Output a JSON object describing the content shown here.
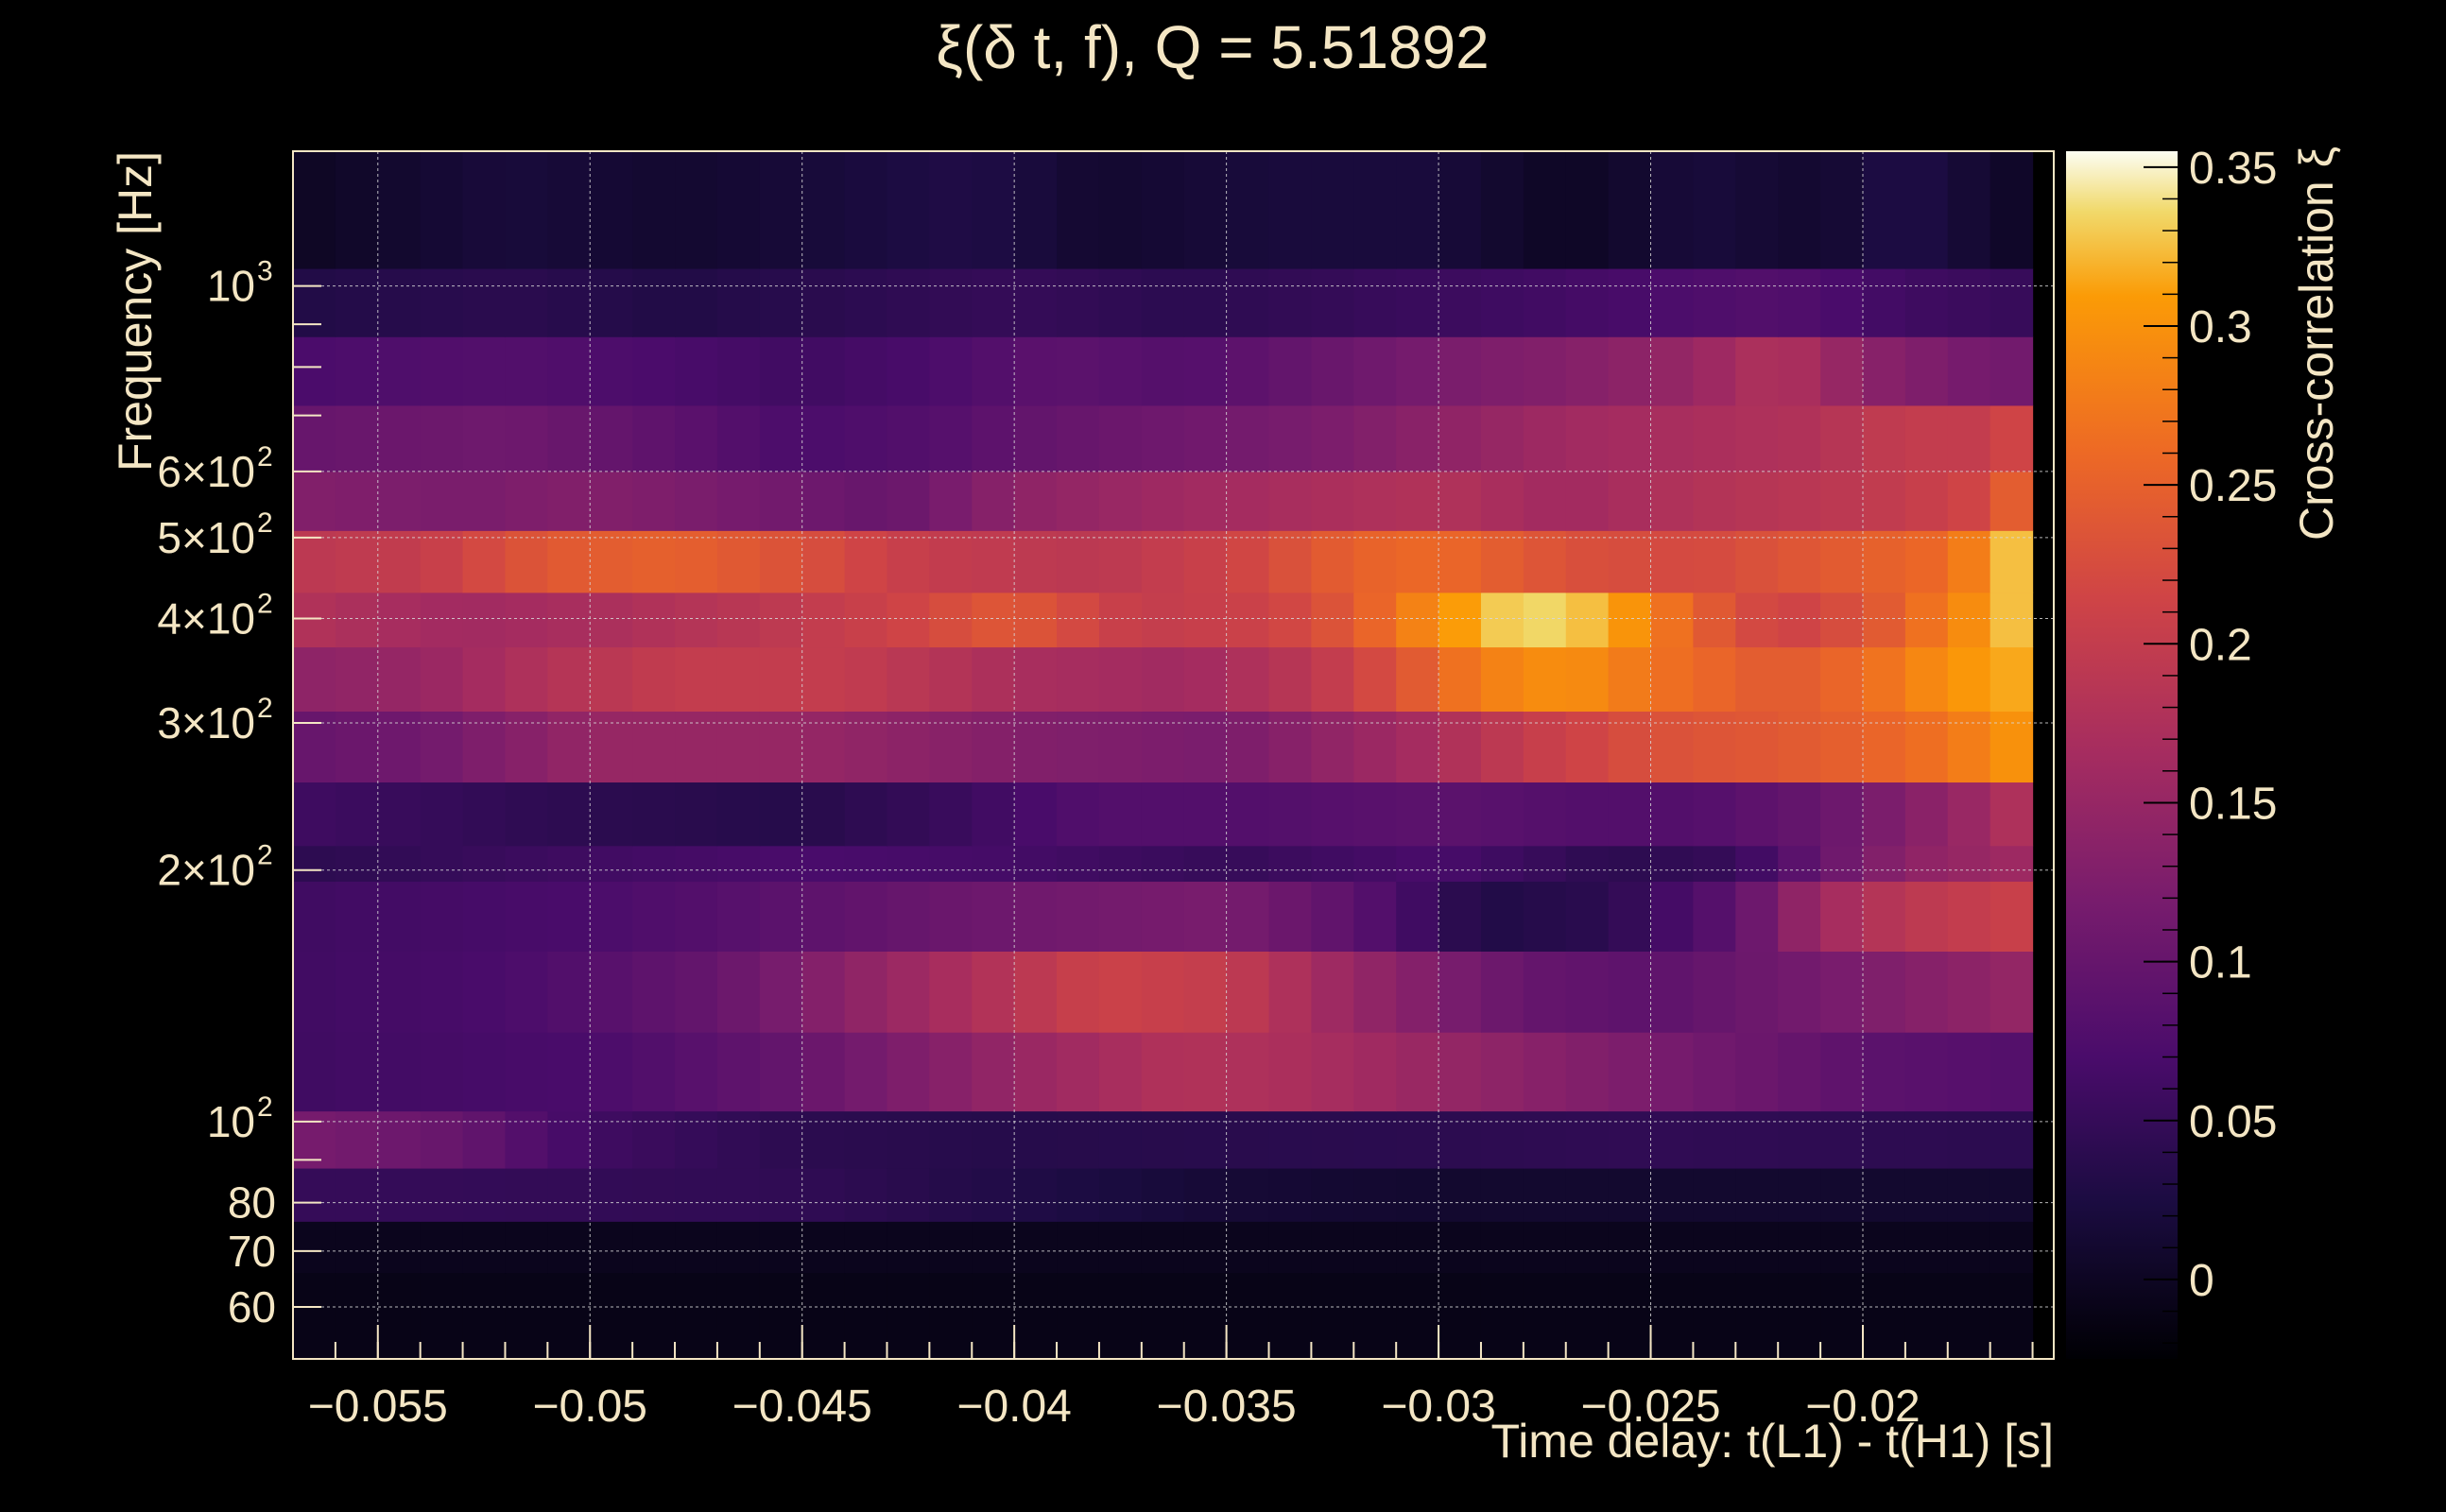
{
  "chart_data": {
    "type": "heatmap",
    "title": "ξ(δ t, f), Q = 5.51892",
    "xlabel": "Time delay: t(L1) - t(H1) [s]",
    "ylabel": "Frequency [Hz]",
    "zlabel": "Cross-correlation ξ",
    "x_scale": "linear",
    "y_scale": "log",
    "xlim": [
      -0.057,
      -0.0155
    ],
    "ylim": [
      52,
      1450
    ],
    "zlim": [
      -0.025,
      0.355
    ],
    "x_ticks": [
      {
        "value": -0.055,
        "label": "−0.055"
      },
      {
        "value": -0.05,
        "label": "−0.05"
      },
      {
        "value": -0.045,
        "label": "−0.045"
      },
      {
        "value": -0.04,
        "label": "−0.04"
      },
      {
        "value": -0.035,
        "label": "−0.035"
      },
      {
        "value": -0.03,
        "label": "−0.03"
      },
      {
        "value": -0.025,
        "label": "−0.025"
      },
      {
        "value": -0.02,
        "label": "−0.02"
      }
    ],
    "y_ticks": [
      {
        "value": 60,
        "label": "60"
      },
      {
        "value": 70,
        "label": "70"
      },
      {
        "value": 80,
        "label": "80"
      },
      {
        "value": 100,
        "label": "10",
        "sup": "2"
      },
      {
        "value": 200,
        "label": "2×10",
        "sup": "2"
      },
      {
        "value": 300,
        "label": "3×10",
        "sup": "2"
      },
      {
        "value": 400,
        "label": "4×10",
        "sup": "2"
      },
      {
        "value": 500,
        "label": "5×10",
        "sup": "2"
      },
      {
        "value": 600,
        "label": "6×10",
        "sup": "2"
      },
      {
        "value": 1000,
        "label": "10",
        "sup": "3"
      }
    ],
    "z_ticks": [
      {
        "value": 0,
        "label": "0"
      },
      {
        "value": 0.05,
        "label": "0.05"
      },
      {
        "value": 0.1,
        "label": "0.1"
      },
      {
        "value": 0.15,
        "label": "0.15"
      },
      {
        "value": 0.2,
        "label": "0.2"
      },
      {
        "value": 0.25,
        "label": "0.25"
      },
      {
        "value": 0.3,
        "label": "0.3"
      },
      {
        "value": 0.35,
        "label": "0.35"
      }
    ],
    "grid": true,
    "colormap": "inferno",
    "x_start": -0.057,
    "x_bin_width": 0.001,
    "x_bins": 41,
    "freq_bands": [
      {
        "f_low": 52,
        "f_high": 66,
        "profile": [
          [
            -0.057,
            -0.01
          ],
          [
            -0.016,
            -0.01
          ]
        ]
      },
      {
        "f_low": 66,
        "f_high": 76,
        "profile": [
          [
            -0.057,
            -0.005
          ],
          [
            -0.016,
            -0.005
          ]
        ]
      },
      {
        "f_low": 76,
        "f_high": 88,
        "profile": [
          [
            -0.057,
            0.05
          ],
          [
            -0.045,
            0.045
          ],
          [
            -0.04,
            0.03
          ],
          [
            -0.035,
            0.015
          ],
          [
            -0.03,
            0.01
          ],
          [
            -0.016,
            0.01
          ]
        ]
      },
      {
        "f_low": 88,
        "f_high": 103,
        "profile": [
          [
            -0.057,
            0.12
          ],
          [
            -0.053,
            0.1
          ],
          [
            -0.05,
            0.06
          ],
          [
            -0.045,
            0.04
          ],
          [
            -0.04,
            0.035
          ],
          [
            -0.03,
            0.04
          ],
          [
            -0.025,
            0.045
          ],
          [
            -0.016,
            0.04
          ]
        ]
      },
      {
        "f_low": 103,
        "f_high": 128,
        "profile": [
          [
            -0.057,
            0.06
          ],
          [
            -0.05,
            0.07
          ],
          [
            -0.045,
            0.1
          ],
          [
            -0.04,
            0.15
          ],
          [
            -0.036,
            0.18
          ],
          [
            -0.033,
            0.17
          ],
          [
            -0.03,
            0.15
          ],
          [
            -0.025,
            0.12
          ],
          [
            -0.02,
            0.09
          ],
          [
            -0.016,
            0.08
          ]
        ]
      },
      {
        "f_low": 128,
        "f_high": 160,
        "profile": [
          [
            -0.057,
            0.06
          ],
          [
            -0.052,
            0.07
          ],
          [
            -0.047,
            0.1
          ],
          [
            -0.043,
            0.15
          ],
          [
            -0.038,
            0.21
          ],
          [
            -0.035,
            0.2
          ],
          [
            -0.032,
            0.15
          ],
          [
            -0.028,
            0.1
          ],
          [
            -0.025,
            0.09
          ],
          [
            -0.022,
            0.11
          ],
          [
            -0.019,
            0.13
          ],
          [
            -0.016,
            0.15
          ]
        ]
      },
      {
        "f_low": 160,
        "f_high": 194,
        "profile": [
          [
            -0.057,
            0.06
          ],
          [
            -0.05,
            0.07
          ],
          [
            -0.045,
            0.09
          ],
          [
            -0.04,
            0.11
          ],
          [
            -0.035,
            0.12
          ],
          [
            -0.032,
            0.09
          ],
          [
            -0.029,
            0.03
          ],
          [
            -0.026,
            0.04
          ],
          [
            -0.023,
            0.09
          ],
          [
            -0.021,
            0.16
          ],
          [
            -0.019,
            0.19
          ],
          [
            -0.016,
            0.21
          ]
        ]
      },
      {
        "f_low": 194,
        "f_high": 214,
        "profile": [
          [
            -0.057,
            0.04
          ],
          [
            -0.05,
            0.06
          ],
          [
            -0.045,
            0.07
          ],
          [
            -0.04,
            0.065
          ],
          [
            -0.035,
            0.05
          ],
          [
            -0.03,
            0.07
          ],
          [
            -0.026,
            0.04
          ],
          [
            -0.023,
            0.05
          ],
          [
            -0.021,
            0.1
          ],
          [
            -0.019,
            0.14
          ],
          [
            -0.016,
            0.16
          ]
        ]
      },
      {
        "f_low": 214,
        "f_high": 255,
        "profile": [
          [
            -0.057,
            0.06
          ],
          [
            -0.05,
            0.04
          ],
          [
            -0.045,
            0.035
          ],
          [
            -0.042,
            0.05
          ],
          [
            -0.038,
            0.08
          ],
          [
            -0.034,
            0.08
          ],
          [
            -0.03,
            0.09
          ],
          [
            -0.027,
            0.08
          ],
          [
            -0.024,
            0.08
          ],
          [
            -0.021,
            0.1
          ],
          [
            -0.019,
            0.13
          ],
          [
            -0.017,
            0.16
          ],
          [
            -0.016,
            0.19
          ]
        ]
      },
      {
        "f_low": 255,
        "f_high": 310,
        "profile": [
          [
            -0.057,
            0.1
          ],
          [
            -0.054,
            0.11
          ],
          [
            -0.05,
            0.15
          ],
          [
            -0.045,
            0.15
          ],
          [
            -0.04,
            0.13
          ],
          [
            -0.035,
            0.12
          ],
          [
            -0.032,
            0.15
          ],
          [
            -0.03,
            0.17
          ],
          [
            -0.028,
            0.2
          ],
          [
            -0.025,
            0.23
          ],
          [
            -0.022,
            0.24
          ],
          [
            -0.02,
            0.25
          ],
          [
            -0.018,
            0.27
          ],
          [
            -0.016,
            0.31
          ]
        ]
      },
      {
        "f_low": 310,
        "f_high": 370,
        "profile": [
          [
            -0.057,
            0.14
          ],
          [
            -0.054,
            0.15
          ],
          [
            -0.051,
            0.18
          ],
          [
            -0.048,
            0.2
          ],
          [
            -0.044,
            0.2
          ],
          [
            -0.04,
            0.17
          ],
          [
            -0.036,
            0.16
          ],
          [
            -0.033,
            0.19
          ],
          [
            -0.031,
            0.23
          ],
          [
            -0.029,
            0.28
          ],
          [
            -0.027,
            0.3
          ],
          [
            -0.025,
            0.27
          ],
          [
            -0.022,
            0.24
          ],
          [
            -0.02,
            0.26
          ],
          [
            -0.018,
            0.3
          ],
          [
            -0.016,
            0.32
          ]
        ]
      },
      {
        "f_low": 370,
        "f_high": 430,
        "profile": [
          [
            -0.057,
            0.18
          ],
          [
            -0.053,
            0.16
          ],
          [
            -0.05,
            0.17
          ],
          [
            -0.046,
            0.19
          ],
          [
            -0.043,
            0.21
          ],
          [
            -0.04,
            0.24
          ],
          [
            -0.037,
            0.2
          ],
          [
            -0.034,
            0.21
          ],
          [
            -0.032,
            0.24
          ],
          [
            -0.031,
            0.27
          ],
          [
            -0.03,
            0.3
          ],
          [
            -0.028,
            0.34
          ],
          [
            -0.026,
            0.32
          ],
          [
            -0.024,
            0.25
          ],
          [
            -0.022,
            0.21
          ],
          [
            -0.02,
            0.23
          ],
          [
            -0.018,
            0.28
          ],
          [
            -0.016,
            0.34
          ]
        ]
      },
      {
        "f_low": 430,
        "f_high": 510,
        "profile": [
          [
            -0.057,
            0.19
          ],
          [
            -0.054,
            0.2
          ],
          [
            -0.051,
            0.24
          ],
          [
            -0.048,
            0.25
          ],
          [
            -0.045,
            0.23
          ],
          [
            -0.042,
            0.2
          ],
          [
            -0.038,
            0.19
          ],
          [
            -0.035,
            0.21
          ],
          [
            -0.032,
            0.25
          ],
          [
            -0.03,
            0.26
          ],
          [
            -0.027,
            0.23
          ],
          [
            -0.024,
            0.22
          ],
          [
            -0.021,
            0.24
          ],
          [
            -0.018,
            0.26
          ],
          [
            -0.017,
            0.3
          ],
          [
            -0.016,
            0.35
          ]
        ]
      },
      {
        "f_low": 510,
        "f_high": 600,
        "profile": [
          [
            -0.057,
            0.13
          ],
          [
            -0.053,
            0.12
          ],
          [
            -0.05,
            0.13
          ],
          [
            -0.047,
            0.12
          ],
          [
            -0.043,
            0.1
          ],
          [
            -0.04,
            0.14
          ],
          [
            -0.036,
            0.16
          ],
          [
            -0.033,
            0.17
          ],
          [
            -0.03,
            0.18
          ],
          [
            -0.027,
            0.16
          ],
          [
            -0.024,
            0.18
          ],
          [
            -0.021,
            0.19
          ],
          [
            -0.019,
            0.2
          ],
          [
            -0.017,
            0.22
          ],
          [
            -0.016,
            0.27
          ]
        ]
      },
      {
        "f_low": 600,
        "f_high": 720,
        "profile": [
          [
            -0.057,
            0.1
          ],
          [
            -0.052,
            0.11
          ],
          [
            -0.048,
            0.09
          ],
          [
            -0.045,
            0.07
          ],
          [
            -0.042,
            0.08
          ],
          [
            -0.039,
            0.1
          ],
          [
            -0.036,
            0.11
          ],
          [
            -0.033,
            0.12
          ],
          [
            -0.03,
            0.14
          ],
          [
            -0.027,
            0.16
          ],
          [
            -0.024,
            0.17
          ],
          [
            -0.021,
            0.18
          ],
          [
            -0.019,
            0.2
          ],
          [
            -0.017,
            0.2
          ],
          [
            -0.016,
            0.23
          ]
        ]
      },
      {
        "f_low": 720,
        "f_high": 870,
        "profile": [
          [
            -0.057,
            0.07
          ],
          [
            -0.052,
            0.08
          ],
          [
            -0.048,
            0.07
          ],
          [
            -0.045,
            0.06
          ],
          [
            -0.042,
            0.07
          ],
          [
            -0.039,
            0.09
          ],
          [
            -0.036,
            0.08
          ],
          [
            -0.033,
            0.1
          ],
          [
            -0.03,
            0.12
          ],
          [
            -0.027,
            0.13
          ],
          [
            -0.024,
            0.15
          ],
          [
            -0.022,
            0.18
          ],
          [
            -0.02,
            0.14
          ],
          [
            -0.018,
            0.12
          ],
          [
            -0.016,
            0.11
          ]
        ]
      },
      {
        "f_low": 870,
        "f_high": 1050,
        "profile": [
          [
            -0.057,
            0.03
          ],
          [
            -0.052,
            0.04
          ],
          [
            -0.048,
            0.03
          ],
          [
            -0.044,
            0.04
          ],
          [
            -0.04,
            0.05
          ],
          [
            -0.036,
            0.04
          ],
          [
            -0.032,
            0.05
          ],
          [
            -0.028,
            0.06
          ],
          [
            -0.025,
            0.07
          ],
          [
            -0.022,
            0.08
          ],
          [
            -0.019,
            0.06
          ],
          [
            -0.016,
            0.05
          ]
        ]
      },
      {
        "f_low": 1050,
        "f_high": 1450,
        "profile": [
          [
            -0.057,
            0.0
          ],
          [
            -0.052,
            0.02
          ],
          [
            -0.048,
            0.01
          ],
          [
            -0.044,
            0.02
          ],
          [
            -0.041,
            0.03
          ],
          [
            -0.038,
            0.01
          ],
          [
            -0.034,
            0.02
          ],
          [
            -0.03,
            0.02
          ],
          [
            -0.027,
            0.0
          ],
          [
            -0.024,
            0.02
          ],
          [
            -0.021,
            0.01
          ],
          [
            -0.019,
            0.03
          ],
          [
            -0.016,
            0.0
          ]
        ]
      }
    ]
  }
}
